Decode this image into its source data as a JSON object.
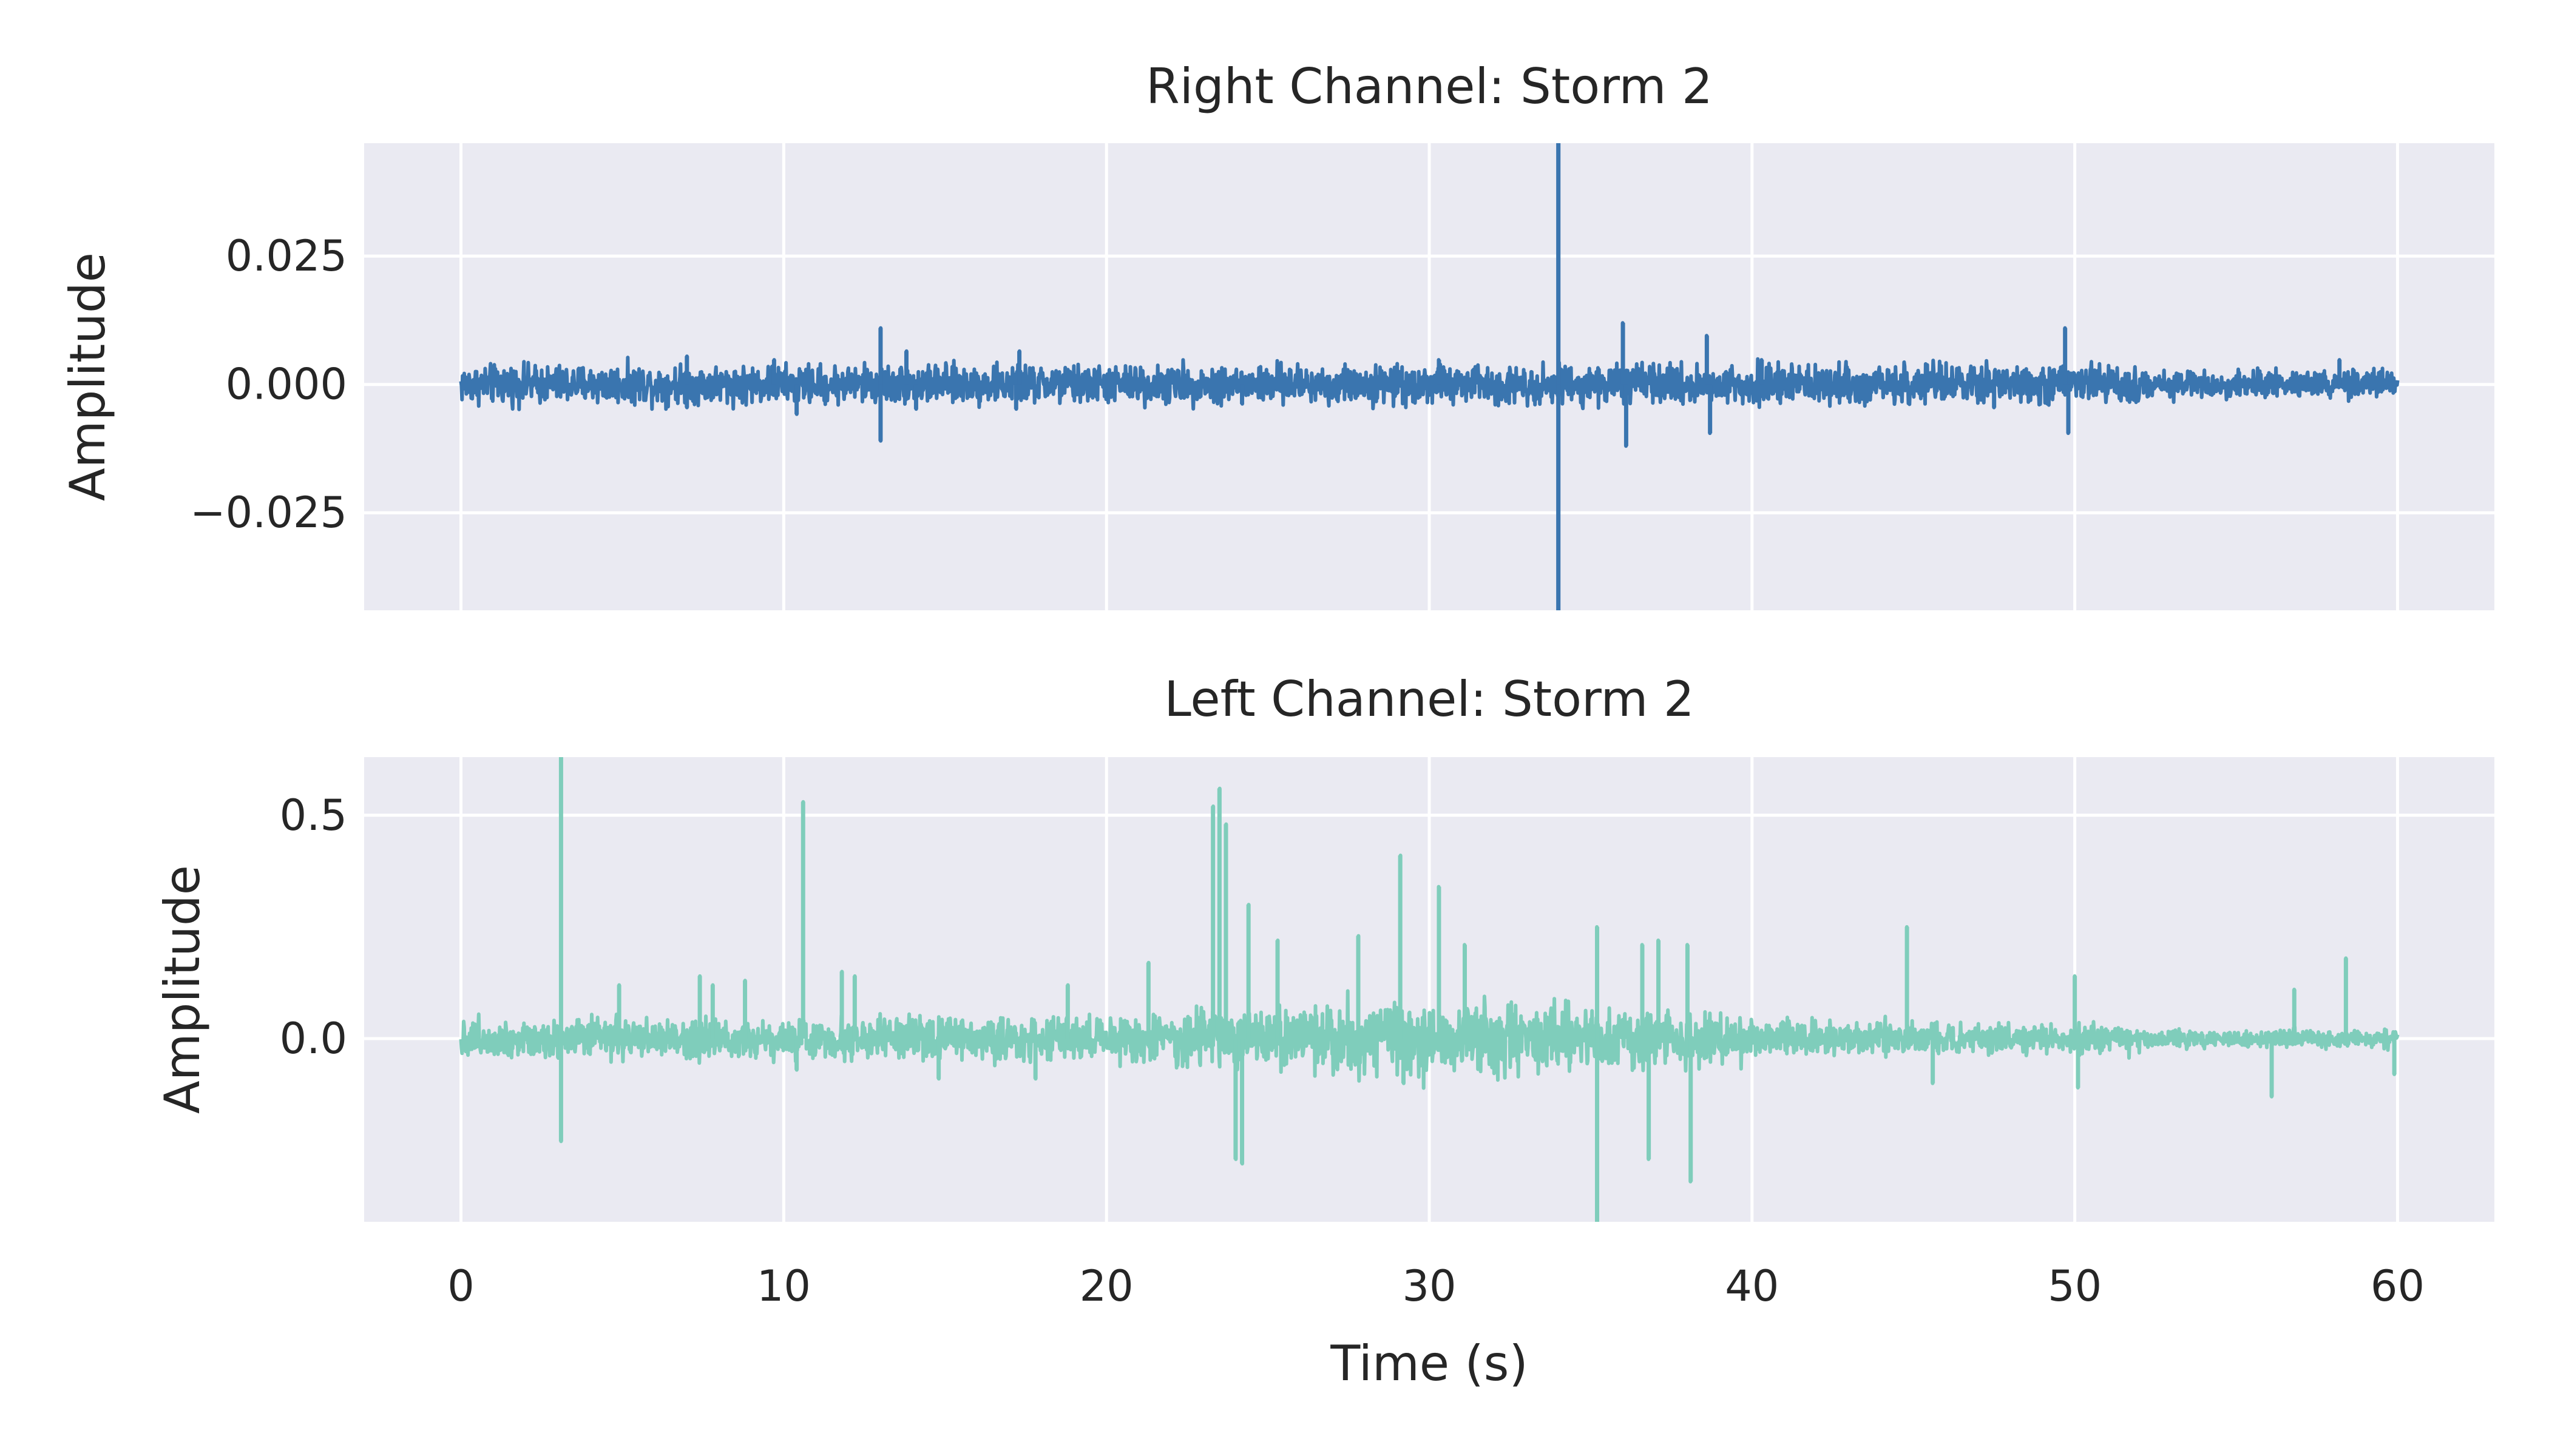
{
  "chart_data": [
    {
      "type": "line",
      "title": "Right Channel: Storm 2",
      "xlabel": "",
      "ylabel": "Amplitude",
      "xlim": [
        -3,
        63
      ],
      "ylim": [
        -0.044,
        0.047
      ],
      "xticks": [
        0,
        10,
        20,
        30,
        40,
        50,
        60
      ],
      "xtick_labels": [
        "",
        "",
        "",
        "",
        "",
        "",
        ""
      ],
      "yticks": [
        -0.025,
        0.0,
        0.025
      ],
      "ytick_labels": [
        "−0.025",
        "0.000",
        "0.025"
      ],
      "grid": true,
      "series_color": "#3a75af",
      "baseline_noise": 0.0018,
      "spikes": [
        {
          "x": 7.0,
          "y": 0.0055
        },
        {
          "x": 7.0,
          "y": -0.0045
        },
        {
          "x": 9.7,
          "y": 0.0048
        },
        {
          "x": 10.4,
          "y": -0.0058
        },
        {
          "x": 13.0,
          "y": 0.011
        },
        {
          "x": 13.0,
          "y": -0.011
        },
        {
          "x": 13.8,
          "y": 0.0065
        },
        {
          "x": 14.1,
          "y": -0.0048
        },
        {
          "x": 17.3,
          "y": 0.0065
        },
        {
          "x": 17.2,
          "y": -0.0048
        },
        {
          "x": 24.2,
          "y": -0.0038
        },
        {
          "x": 30.3,
          "y": 0.0048
        },
        {
          "x": 34.0,
          "y": 0.047
        },
        {
          "x": 34.0,
          "y": -0.044
        },
        {
          "x": 36.0,
          "y": 0.012
        },
        {
          "x": 36.1,
          "y": -0.012
        },
        {
          "x": 38.6,
          "y": 0.0095
        },
        {
          "x": 38.7,
          "y": -0.0095
        },
        {
          "x": 40.3,
          "y": 0.0048
        },
        {
          "x": 47.5,
          "y": -0.0045
        },
        {
          "x": 49.7,
          "y": 0.011
        },
        {
          "x": 49.8,
          "y": -0.0095
        },
        {
          "x": 58.2,
          "y": 0.0048
        }
      ]
    },
    {
      "type": "line",
      "title": "Left Channel: Storm 2",
      "xlabel": "Time (s)",
      "ylabel": "Amplitude",
      "xlim": [
        -3,
        63
      ],
      "ylim": [
        -0.41,
        0.63
      ],
      "xticks": [
        0,
        10,
        20,
        30,
        40,
        50,
        60
      ],
      "xtick_labels": [
        "0",
        "10",
        "20",
        "30",
        "40",
        "50",
        "60"
      ],
      "yticks": [
        0.0,
        0.5
      ],
      "ytick_labels": [
        "0.0",
        "0.5"
      ],
      "grid": true,
      "series_color": "#7fcdbb",
      "baseline_noise": 0.03,
      "spikes": [
        {
          "x": 3.1,
          "y": 0.63
        },
        {
          "x": 3.1,
          "y": -0.23
        },
        {
          "x": 4.9,
          "y": 0.12
        },
        {
          "x": 7.4,
          "y": 0.14
        },
        {
          "x": 7.8,
          "y": 0.12
        },
        {
          "x": 8.8,
          "y": 0.13
        },
        {
          "x": 10.6,
          "y": 0.53
        },
        {
          "x": 10.4,
          "y": -0.07
        },
        {
          "x": 11.8,
          "y": 0.15
        },
        {
          "x": 12.2,
          "y": 0.14
        },
        {
          "x": 14.8,
          "y": -0.09
        },
        {
          "x": 17.8,
          "y": -0.09
        },
        {
          "x": 18.8,
          "y": 0.12
        },
        {
          "x": 21.3,
          "y": 0.17
        },
        {
          "x": 23.3,
          "y": 0.52
        },
        {
          "x": 23.5,
          "y": 0.56
        },
        {
          "x": 23.7,
          "y": 0.48
        },
        {
          "x": 24.0,
          "y": -0.27
        },
        {
          "x": 24.2,
          "y": -0.28
        },
        {
          "x": 24.4,
          "y": 0.3
        },
        {
          "x": 25.3,
          "y": 0.22
        },
        {
          "x": 27.8,
          "y": 0.23
        },
        {
          "x": 29.1,
          "y": 0.41
        },
        {
          "x": 29.2,
          "y": -0.1
        },
        {
          "x": 30.3,
          "y": 0.34
        },
        {
          "x": 31.1,
          "y": 0.21
        },
        {
          "x": 35.2,
          "y": 0.25
        },
        {
          "x": 35.2,
          "y": -0.41
        },
        {
          "x": 36.6,
          "y": 0.21
        },
        {
          "x": 36.8,
          "y": -0.27
        },
        {
          "x": 37.1,
          "y": 0.22
        },
        {
          "x": 38.0,
          "y": 0.21
        },
        {
          "x": 38.1,
          "y": -0.32
        },
        {
          "x": 44.8,
          "y": 0.25
        },
        {
          "x": 45.6,
          "y": -0.1
        },
        {
          "x": 50.0,
          "y": 0.14
        },
        {
          "x": 50.1,
          "y": -0.11
        },
        {
          "x": 56.8,
          "y": 0.11
        },
        {
          "x": 56.1,
          "y": -0.13
        },
        {
          "x": 58.4,
          "y": 0.18
        },
        {
          "x": 59.9,
          "y": -0.08
        }
      ]
    }
  ]
}
